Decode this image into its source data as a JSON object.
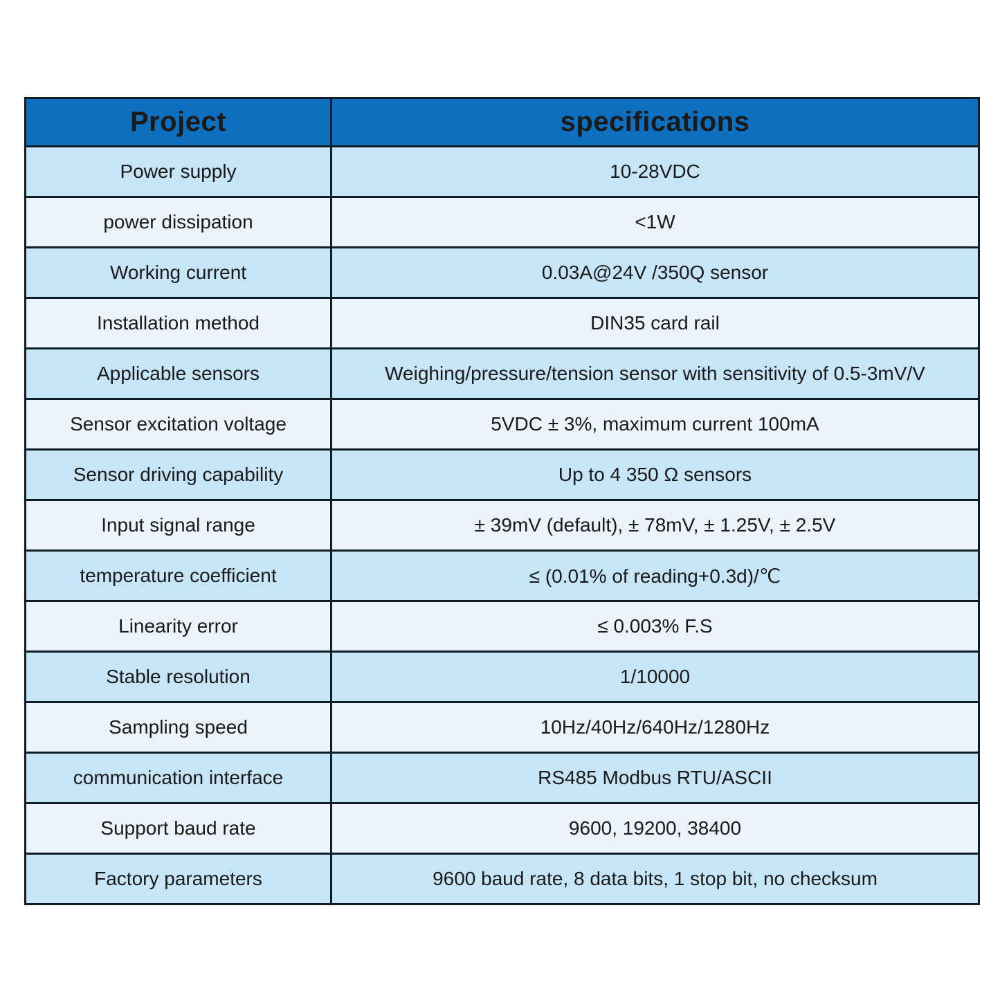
{
  "table": {
    "header": {
      "project": "Project",
      "specifications": "specifications"
    },
    "rows": [
      {
        "label": "Power supply",
        "value": "10-28VDC"
      },
      {
        "label": "power dissipation",
        "value": "<1W"
      },
      {
        "label": "Working current",
        "value": "0.03A@24V /350Q sensor"
      },
      {
        "label": "Installation method",
        "value": "DIN35 card rail"
      },
      {
        "label": "Applicable sensors",
        "value": "Weighing/pressure/tension sensor with sensitivity of 0.5-3mV/V"
      },
      {
        "label": "Sensor excitation voltage",
        "value": "5VDC ± 3%, maximum current 100mA"
      },
      {
        "label": "Sensor driving capability",
        "value": "Up to 4 350 Ω sensors"
      },
      {
        "label": "Input signal range",
        "value": "± 39mV (default), ± 78mV, ± 1.25V, ± 2.5V"
      },
      {
        "label": "temperature coefficient",
        "value": "≤ (0.01% of reading+0.3d)/℃"
      },
      {
        "label": "Linearity error",
        "value": "≤ 0.003% F.S"
      },
      {
        "label": "Stable resolution",
        "value": "1/10000"
      },
      {
        "label": "Sampling speed",
        "value": "10Hz/40Hz/640Hz/1280Hz"
      },
      {
        "label": "communication interface",
        "value": "RS485 Modbus RTU/ASCII"
      },
      {
        "label": "Support baud rate",
        "value": "9600, 19200, 38400"
      },
      {
        "label": "Factory parameters",
        "value": "9600 baud rate, 8 data bits, 1 stop bit, no checksum"
      }
    ],
    "colors": {
      "header_bg": "#0d6fbe",
      "header_text": "#ffffff",
      "row_odd_bg": "#c6e5f7",
      "row_even_bg": "#ebf4fb",
      "border": "#101c26",
      "text": "#1a1a1a"
    }
  }
}
